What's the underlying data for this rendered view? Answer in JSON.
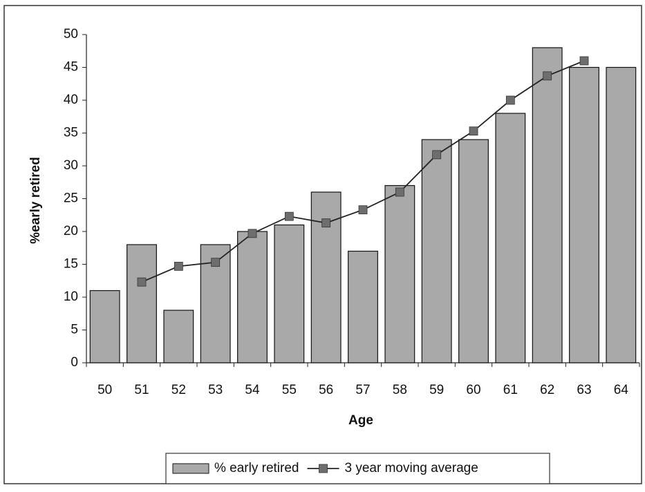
{
  "chart_data": {
    "type": "bar",
    "x_label": "Age",
    "y_label": "%early retired",
    "categories": [
      "50",
      "51",
      "52",
      "53",
      "54",
      "55",
      "56",
      "57",
      "58",
      "59",
      "60",
      "61",
      "62",
      "63",
      "64"
    ],
    "series": [
      {
        "name": "% early retired",
        "type": "bar",
        "color": "#a9a9a9",
        "values": [
          11,
          18,
          8,
          18,
          20,
          21,
          26,
          17,
          27,
          34,
          34,
          38,
          48,
          45,
          45
        ]
      },
      {
        "name": "3 year moving average",
        "type": "line",
        "color": "#222222",
        "marker_color": "#6e6e6e",
        "values": [
          null,
          12.3,
          14.7,
          15.3,
          19.7,
          22.3,
          21.3,
          23.3,
          26,
          31.7,
          35.3,
          40,
          43.7,
          46,
          null
        ]
      }
    ],
    "ylim": [
      0,
      50
    ],
    "yticks": [
      0,
      5,
      10,
      15,
      20,
      25,
      30,
      35,
      40,
      45,
      50
    ],
    "legend": "bottom"
  }
}
